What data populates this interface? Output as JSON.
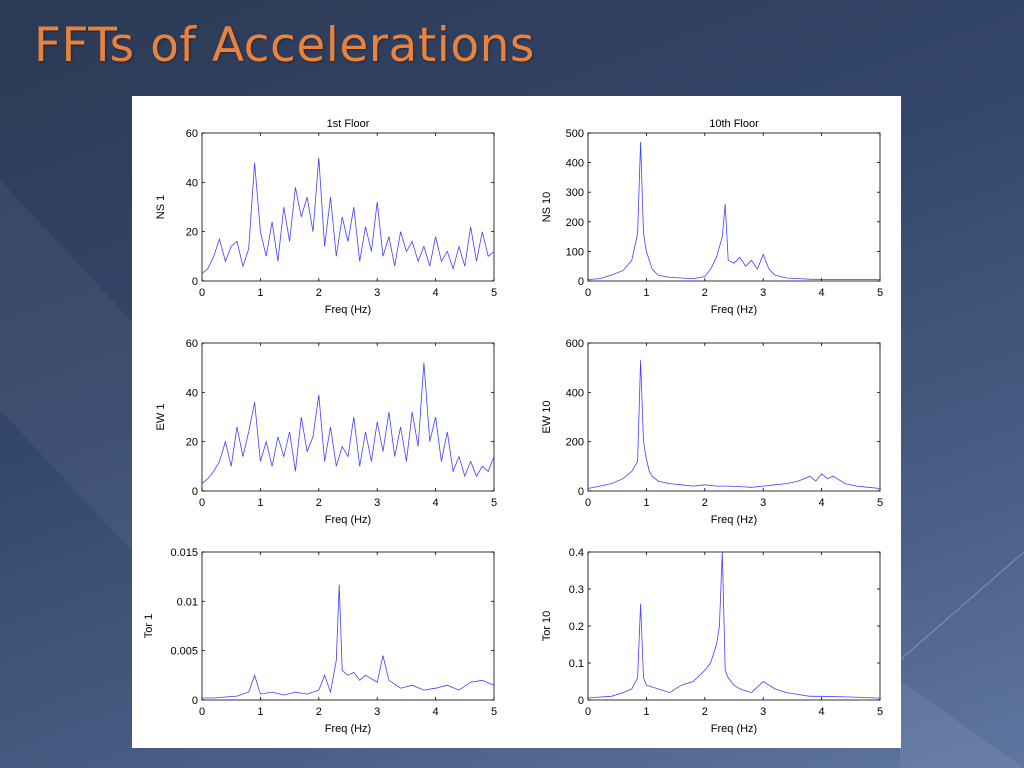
{
  "slide": {
    "title": "FFTs of Accelerations"
  },
  "colors": {
    "title": "#e8823c",
    "line": "#4040ff",
    "background": "#34466a",
    "figure": "#ffffff"
  },
  "chart_data": [
    {
      "type": "line",
      "title": "1st Floor",
      "xlabel": "Freq (Hz)",
      "ylabel": "NS 1",
      "xlim": [
        0,
        5
      ],
      "ylim": [
        0,
        60
      ],
      "xticks": [
        "0",
        "1",
        "2",
        "3",
        "4",
        "5"
      ],
      "yticks": [
        "0",
        "20",
        "40",
        "60"
      ],
      "series": [
        {
          "x": [
            0,
            0.1,
            0.2,
            0.3,
            0.4,
            0.5,
            0.6,
            0.7,
            0.8,
            0.9,
            1.0,
            1.1,
            1.2,
            1.3,
            1.4,
            1.5,
            1.6,
            1.7,
            1.8,
            1.9,
            2.0,
            2.1,
            2.2,
            2.3,
            2.4,
            2.5,
            2.6,
            2.7,
            2.8,
            2.9,
            3.0,
            3.1,
            3.2,
            3.3,
            3.4,
            3.5,
            3.6,
            3.7,
            3.8,
            3.9,
            4.0,
            4.1,
            4.2,
            4.3,
            4.4,
            4.5,
            4.6,
            4.7,
            4.8,
            4.9,
            5.0
          ],
          "values": [
            3,
            5,
            10,
            17,
            8,
            14,
            16,
            6,
            13,
            48,
            20,
            10,
            24,
            8,
            30,
            16,
            38,
            26,
            34,
            20,
            50,
            14,
            34,
            10,
            26,
            16,
            30,
            8,
            22,
            12,
            32,
            10,
            18,
            6,
            20,
            12,
            16,
            8,
            14,
            6,
            18,
            8,
            12,
            5,
            14,
            6,
            22,
            8,
            20,
            10,
            12
          ]
        }
      ]
    },
    {
      "type": "line",
      "title": "10th Floor",
      "xlabel": "Freq (Hz)",
      "ylabel": "NS 10",
      "xlim": [
        0,
        5
      ],
      "ylim": [
        0,
        500
      ],
      "xticks": [
        "0",
        "1",
        "2",
        "3",
        "4",
        "5"
      ],
      "yticks": [
        "0",
        "100",
        "200",
        "300",
        "400",
        "500"
      ],
      "series": [
        {
          "x": [
            0,
            0.2,
            0.4,
            0.6,
            0.75,
            0.85,
            0.9,
            0.95,
            1.0,
            1.1,
            1.2,
            1.4,
            1.6,
            1.8,
            2.0,
            2.1,
            2.2,
            2.3,
            2.35,
            2.4,
            2.5,
            2.6,
            2.7,
            2.8,
            2.9,
            3.0,
            3.1,
            3.2,
            3.4,
            3.6,
            3.8,
            4.0,
            4.5,
            5.0
          ],
          "values": [
            5,
            8,
            20,
            35,
            70,
            160,
            470,
            160,
            100,
            40,
            20,
            12,
            10,
            8,
            15,
            40,
            80,
            150,
            260,
            70,
            60,
            80,
            50,
            70,
            40,
            90,
            40,
            20,
            10,
            8,
            6,
            5,
            5,
            5
          ]
        }
      ]
    },
    {
      "type": "line",
      "title": "",
      "xlabel": "Freq (Hz)",
      "ylabel": "EW 1",
      "xlim": [
        0,
        5
      ],
      "ylim": [
        0,
        60
      ],
      "xticks": [
        "0",
        "1",
        "2",
        "3",
        "4",
        "5"
      ],
      "yticks": [
        "0",
        "20",
        "40",
        "60"
      ],
      "series": [
        {
          "x": [
            0,
            0.1,
            0.2,
            0.3,
            0.4,
            0.5,
            0.6,
            0.7,
            0.8,
            0.9,
            1.0,
            1.1,
            1.2,
            1.3,
            1.4,
            1.5,
            1.6,
            1.7,
            1.8,
            1.9,
            2.0,
            2.1,
            2.2,
            2.3,
            2.4,
            2.5,
            2.6,
            2.7,
            2.8,
            2.9,
            3.0,
            3.1,
            3.2,
            3.3,
            3.4,
            3.5,
            3.6,
            3.7,
            3.8,
            3.9,
            4.0,
            4.1,
            4.2,
            4.3,
            4.4,
            4.5,
            4.6,
            4.7,
            4.8,
            4.9,
            5.0
          ],
          "values": [
            3,
            5,
            8,
            12,
            20,
            10,
            26,
            14,
            24,
            36,
            12,
            20,
            10,
            22,
            14,
            24,
            8,
            30,
            16,
            22,
            39,
            12,
            26,
            10,
            18,
            14,
            30,
            10,
            24,
            12,
            28,
            16,
            32,
            14,
            26,
            12,
            32,
            18,
            52,
            20,
            30,
            12,
            24,
            8,
            14,
            6,
            12,
            6,
            10,
            8,
            14
          ]
        }
      ]
    },
    {
      "type": "line",
      "title": "",
      "xlabel": "Freq (Hz)",
      "ylabel": "EW 10",
      "xlim": [
        0,
        5
      ],
      "ylim": [
        0,
        600
      ],
      "xticks": [
        "0",
        "1",
        "2",
        "3",
        "4",
        "5"
      ],
      "yticks": [
        "0",
        "200",
        "400",
        "600"
      ],
      "series": [
        {
          "x": [
            0,
            0.2,
            0.4,
            0.6,
            0.75,
            0.85,
            0.9,
            0.95,
            1.0,
            1.05,
            1.1,
            1.2,
            1.4,
            1.6,
            1.8,
            2.0,
            2.2,
            2.4,
            2.6,
            2.8,
            3.0,
            3.2,
            3.4,
            3.6,
            3.8,
            3.9,
            4.0,
            4.1,
            4.2,
            4.4,
            4.6,
            4.8,
            5.0
          ],
          "values": [
            10,
            20,
            30,
            50,
            80,
            120,
            530,
            200,
            130,
            80,
            60,
            40,
            30,
            25,
            20,
            25,
            20,
            20,
            18,
            15,
            20,
            25,
            30,
            40,
            60,
            40,
            70,
            50,
            60,
            30,
            20,
            15,
            10
          ]
        }
      ]
    },
    {
      "type": "line",
      "title": "",
      "xlabel": "Freq (Hz)",
      "ylabel": "Tor 1",
      "xlim": [
        0,
        5
      ],
      "ylim": [
        0,
        0.015
      ],
      "xticks": [
        "0",
        "1",
        "2",
        "3",
        "4",
        "5"
      ],
      "yticks": [
        "0",
        "0.005",
        "0.01",
        "0.015"
      ],
      "series": [
        {
          "x": [
            0,
            0.2,
            0.4,
            0.6,
            0.8,
            0.9,
            1.0,
            1.2,
            1.4,
            1.6,
            1.8,
            2.0,
            2.1,
            2.2,
            2.3,
            2.35,
            2.4,
            2.5,
            2.6,
            2.7,
            2.8,
            3.0,
            3.1,
            3.2,
            3.4,
            3.6,
            3.8,
            4.0,
            4.2,
            4.4,
            4.6,
            4.8,
            5.0
          ],
          "values": [
            0.0002,
            0.0002,
            0.0003,
            0.0004,
            0.0008,
            0.0025,
            0.0006,
            0.0008,
            0.0005,
            0.0008,
            0.0006,
            0.001,
            0.0025,
            0.0008,
            0.004,
            0.0117,
            0.003,
            0.0025,
            0.0028,
            0.002,
            0.0025,
            0.0018,
            0.0045,
            0.002,
            0.0012,
            0.0015,
            0.001,
            0.0012,
            0.0015,
            0.001,
            0.0018,
            0.002,
            0.0015
          ]
        }
      ]
    },
    {
      "type": "line",
      "title": "",
      "xlabel": "Freq (Hz)",
      "ylabel": "Tor 10",
      "xlim": [
        0,
        5
      ],
      "ylim": [
        0,
        0.4
      ],
      "xticks": [
        "0",
        "1",
        "2",
        "3",
        "4",
        "5"
      ],
      "yticks": [
        "0",
        "0.1",
        "0.2",
        "0.3",
        "0.4"
      ],
      "series": [
        {
          "x": [
            0,
            0.2,
            0.4,
            0.6,
            0.75,
            0.85,
            0.9,
            0.95,
            1.0,
            1.2,
            1.4,
            1.6,
            1.8,
            2.0,
            2.1,
            2.2,
            2.25,
            2.3,
            2.35,
            2.4,
            2.5,
            2.6,
            2.8,
            3.0,
            3.2,
            3.4,
            3.6,
            3.8,
            4.0,
            4.5,
            5.0
          ],
          "values": [
            0.005,
            0.008,
            0.01,
            0.02,
            0.03,
            0.06,
            0.26,
            0.06,
            0.04,
            0.03,
            0.02,
            0.04,
            0.05,
            0.08,
            0.1,
            0.15,
            0.2,
            0.4,
            0.08,
            0.06,
            0.04,
            0.03,
            0.02,
            0.05,
            0.03,
            0.02,
            0.015,
            0.01,
            0.01,
            0.008,
            0.005
          ]
        }
      ]
    }
  ]
}
